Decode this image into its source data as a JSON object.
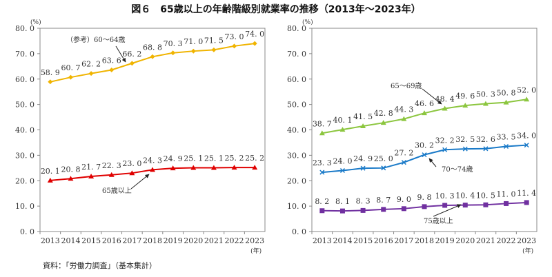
{
  "title": "図６　65歳以上の年齢階級別就業率の推移（2013年～2023年）",
  "source": "資料：「労働力調査」（基本集計）",
  "chart_data": [
    {
      "type": "line",
      "ylabel": "(%)",
      "xlabel": "(年)",
      "ylim": [
        0,
        80
      ],
      "yticks": [
        "0.0",
        "10.0",
        "20.0",
        "30.0",
        "40.0",
        "50.0",
        "60.0",
        "70.0",
        "80.0"
      ],
      "categories": [
        "2013",
        "2014",
        "2015",
        "2016",
        "2017",
        "2018",
        "2019",
        "2020",
        "2021",
        "2022",
        "2023"
      ],
      "grid": false,
      "series": [
        {
          "name": "（参考）60～64歳",
          "color": "#f0b400",
          "marker": "diamond",
          "values": [
            58.9,
            60.7,
            62.2,
            63.6,
            66.2,
            68.8,
            70.3,
            71.0,
            71.5,
            73.0,
            74.0
          ],
          "labels": [
            "58.9",
            "60.7",
            "62.2",
            "63.6",
            "66.2",
            "68.8",
            "70.3",
            "71.0",
            "71.5",
            "73.0",
            "74.0"
          ]
        },
        {
          "name": "65歳以上",
          "color": "#e00000",
          "marker": "triangle",
          "values": [
            20.1,
            20.8,
            21.7,
            22.3,
            23.0,
            24.3,
            24.9,
            25.1,
            25.1,
            25.2,
            25.2
          ],
          "labels": [
            "20.1",
            "20.8",
            "21.7",
            "22.3",
            "23.0",
            "24.3",
            "24.9",
            "25.1",
            "25.1",
            "25.2",
            "25.2"
          ]
        }
      ]
    },
    {
      "type": "line",
      "ylabel": "(%)",
      "xlabel": "(年)",
      "ylim": [
        0,
        80
      ],
      "yticks": [
        "0.0",
        "10.0",
        "20.0",
        "30.0",
        "40.0",
        "50.0",
        "60.0",
        "70.0",
        "80.0"
      ],
      "categories": [
        "2013",
        "2014",
        "2015",
        "2016",
        "2017",
        "2018",
        "2019",
        "2020",
        "2021",
        "2022",
        "2023"
      ],
      "grid": false,
      "series": [
        {
          "name": "65～69歳",
          "color": "#8cc63f",
          "marker": "triangle",
          "values": [
            38.7,
            40.1,
            41.5,
            42.8,
            44.3,
            46.6,
            48.4,
            49.6,
            50.3,
            50.8,
            52.0
          ],
          "labels": [
            "38.7",
            "40.1",
            "41.5",
            "42.8",
            "44.3",
            "46.6",
            "48.4",
            "49.6",
            "50.3",
            "50.8",
            "52.0"
          ]
        },
        {
          "name": "70～74歳",
          "color": "#1a7ac8",
          "marker": "x",
          "values": [
            23.3,
            24.0,
            24.9,
            25.0,
            27.2,
            30.2,
            32.2,
            32.5,
            32.6,
            33.5,
            34.0
          ],
          "labels": [
            "23.3",
            "24.0",
            "24.9",
            "25.0",
            "27.2",
            "30.2",
            "32.2",
            "32.5",
            "32.6",
            "33.5",
            "34.0"
          ]
        },
        {
          "name": "75歳以上",
          "color": "#7030a0",
          "marker": "square",
          "values": [
            8.2,
            8.1,
            8.3,
            8.7,
            9.0,
            9.8,
            10.3,
            10.4,
            10.5,
            11.0,
            11.4
          ],
          "labels": [
            "8.2",
            "8.1",
            "8.3",
            "8.7",
            "9.0",
            "9.8",
            "10.3",
            "10.4",
            "10.5",
            "11.0",
            "11.4"
          ]
        }
      ]
    }
  ]
}
